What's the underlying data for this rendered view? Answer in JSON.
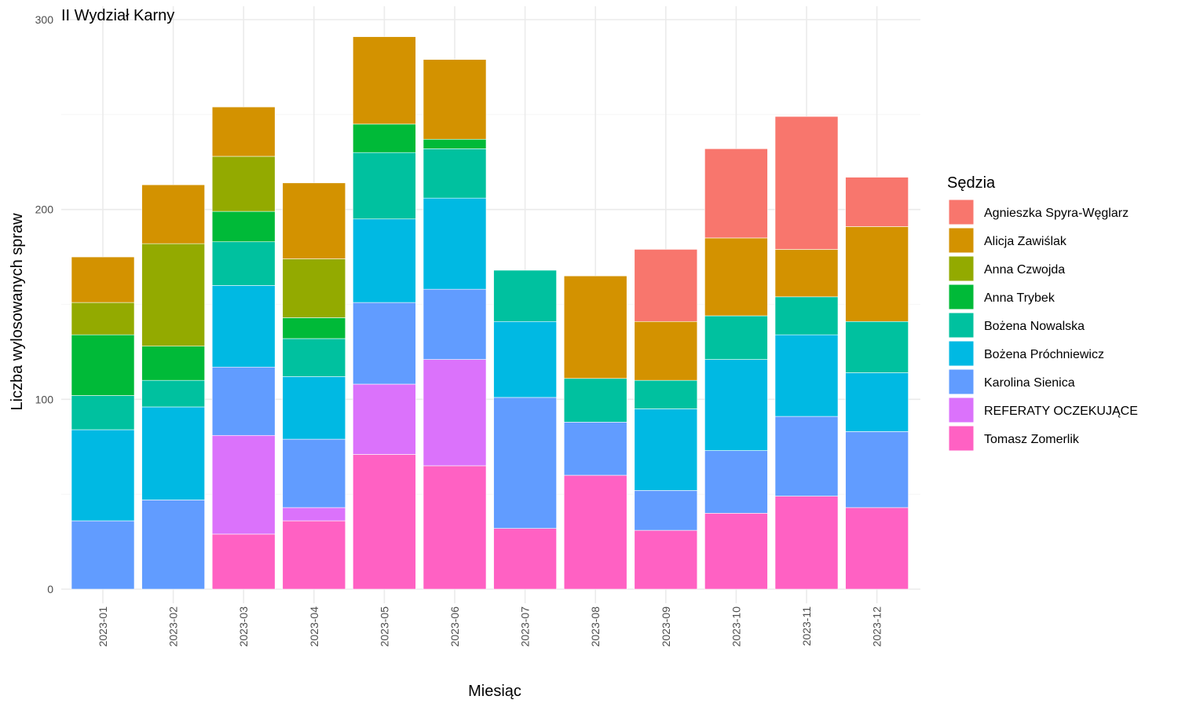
{
  "chart_data": {
    "type": "bar",
    "stacked": true,
    "title": "II Wydział Karny",
    "xlabel": "Miesiąc",
    "ylabel": "Liczba wylosowanych spraw",
    "ylim": [
      0,
      300
    ],
    "yticks": [
      0,
      100,
      200,
      300
    ],
    "grid": true,
    "legend_title": "Sędzia",
    "legend_position": "right",
    "categories": [
      "2023-01",
      "2023-02",
      "2023-03",
      "2023-04",
      "2023-05",
      "2023-06",
      "2023-07",
      "2023-08",
      "2023-09",
      "2023-10",
      "2023-11",
      "2023-12"
    ],
    "stack_order": [
      "Tomasz Zomerlik",
      "REFERATY OCZEKUJĄCE",
      "Karolina Sienica",
      "Bożena Próchniewicz",
      "Bożena Nowalska",
      "Anna Trybek",
      "Anna Czwojda",
      "Alicja Zawiślak",
      "Agnieszka Spyra-Węglarz"
    ],
    "series": [
      {
        "name": "Agnieszka Spyra-Węglarz",
        "color": "#F8766D",
        "values": [
          0,
          0,
          0,
          0,
          0,
          0,
          0,
          0,
          38,
          47,
          70,
          26
        ]
      },
      {
        "name": "Alicja Zawiślak",
        "color": "#D39200",
        "values": [
          24,
          31,
          26,
          40,
          46,
          42,
          0,
          54,
          31,
          41,
          25,
          50
        ]
      },
      {
        "name": "Anna Czwojda",
        "color": "#93AA00",
        "values": [
          17,
          54,
          29,
          31,
          0,
          0,
          0,
          0,
          0,
          0,
          0,
          0
        ]
      },
      {
        "name": "Anna Trybek",
        "color": "#00BA38",
        "values": [
          32,
          18,
          16,
          11,
          15,
          5,
          0,
          0,
          0,
          0,
          0,
          0
        ]
      },
      {
        "name": "Bożena Nowalska",
        "color": "#00C19F",
        "values": [
          18,
          14,
          23,
          20,
          35,
          26,
          27,
          23,
          15,
          23,
          20,
          27
        ]
      },
      {
        "name": "Bożena Próchniewicz",
        "color": "#00B9E3",
        "values": [
          48,
          49,
          43,
          33,
          44,
          48,
          40,
          0,
          43,
          48,
          43,
          31
        ]
      },
      {
        "name": "Karolina Sienica",
        "color": "#619CFF",
        "values": [
          36,
          47,
          36,
          36,
          43,
          37,
          69,
          28,
          21,
          33,
          42,
          40
        ]
      },
      {
        "name": "REFERATY OCZEKUJĄCE",
        "color": "#DB72FB",
        "values": [
          0,
          0,
          52,
          7,
          37,
          56,
          0,
          0,
          0,
          0,
          0,
          0
        ]
      },
      {
        "name": "Tomasz Zomerlik",
        "color": "#FF61C3",
        "values": [
          0,
          0,
          29,
          36,
          71,
          65,
          32,
          60,
          31,
          40,
          49,
          43
        ]
      }
    ]
  }
}
